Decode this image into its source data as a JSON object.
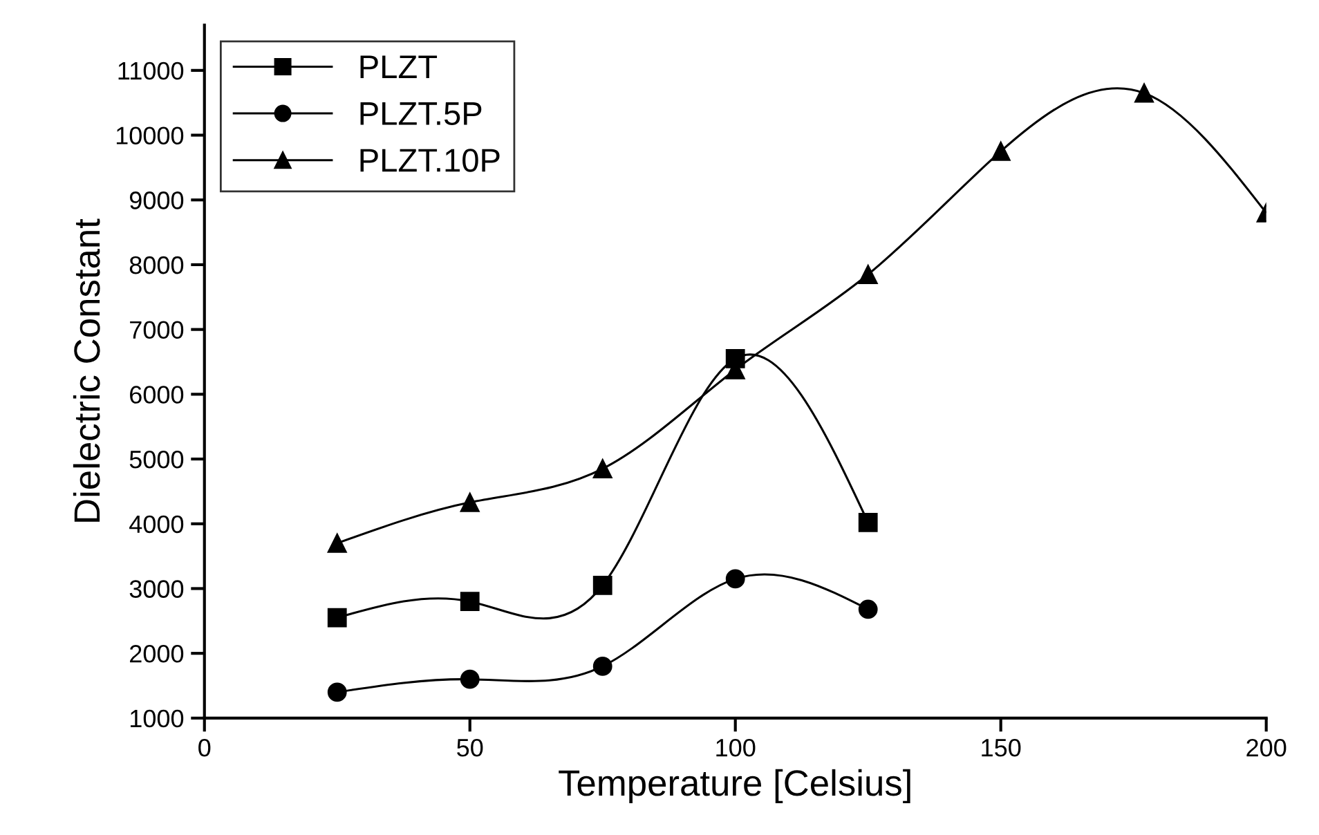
{
  "chart_data": {
    "type": "line",
    "xlabel": "Temperature [Celsius]",
    "ylabel": "Dielectric Constant",
    "xlim": [
      0,
      200
    ],
    "xticks": [
      0,
      50,
      100,
      150,
      200
    ],
    "ylim": [
      1000,
      11700
    ],
    "yticks": [
      1000,
      2000,
      3000,
      4000,
      5000,
      6000,
      7000,
      8000,
      9000,
      10000,
      11000
    ],
    "grid": false,
    "legend": "top left",
    "line_style": "solid",
    "series": [
      {
        "name": "PLZT",
        "color": "#000000",
        "marker": "square",
        "x": [
          25,
          50,
          75,
          100,
          125
        ],
        "values": [
          2550,
          2800,
          3050,
          6550,
          4020
        ]
      },
      {
        "name": "PLZT.5P",
        "color": "#000000",
        "marker": "circle",
        "x": [
          25,
          50,
          75,
          100,
          125
        ],
        "values": [
          1400,
          1600,
          1800,
          3150,
          2680
        ]
      },
      {
        "name": "PLZT.10P",
        "color": "#000000",
        "marker": "triangle",
        "x": [
          25,
          50,
          75,
          100,
          125,
          150,
          177,
          200
        ],
        "values": [
          3700,
          4330,
          4850,
          6380,
          7850,
          9750,
          10650,
          8800
        ]
      }
    ]
  }
}
